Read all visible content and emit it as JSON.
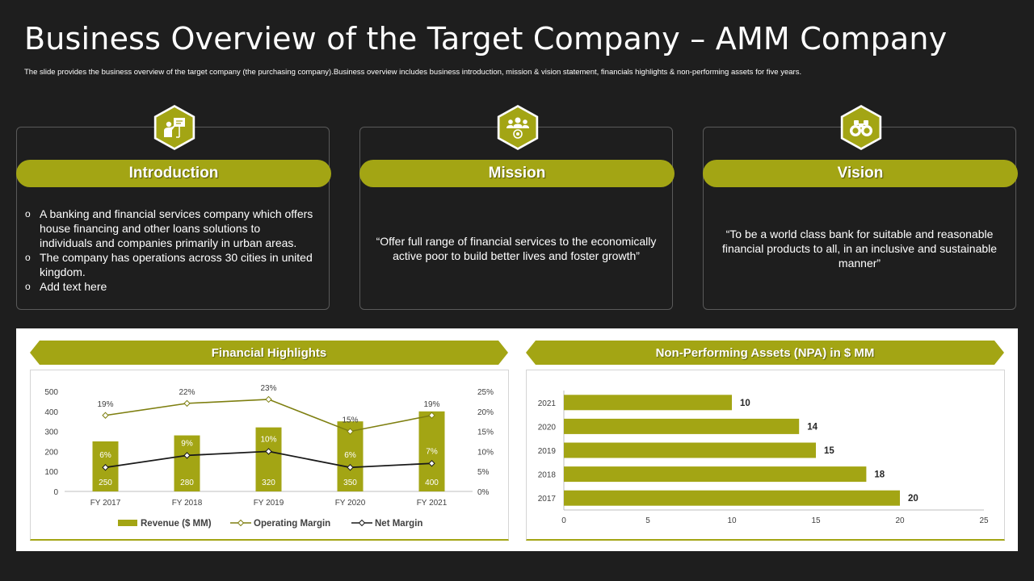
{
  "title": "Business Overview of the Target Company – AMM Company",
  "subtitle": "The slide provides the business overview of the target company (the purchasing company).Business overview includes business introduction, mission & vision statement,  financials highlights & non-performing assets for five years.",
  "colors": {
    "accent": "#a3a514",
    "background": "#1e1e1e",
    "net_margin_line": "#1a1a1a"
  },
  "cards": {
    "introduction": {
      "label": "Introduction",
      "icon": "presentation-icon",
      "bullet_marker": "o",
      "bullets": [
        "A banking and financial services company which offers house financing and other loans solutions to individuals and companies primarily in urban areas.",
        "The company has operations across 30 cities in united kingdom.",
        "Add text here"
      ]
    },
    "mission": {
      "label": "Mission",
      "icon": "team-target-icon",
      "text": "“Offer full range of financial services to the economically active poor to build better lives and foster growth”"
    },
    "vision": {
      "label": "Vision",
      "icon": "binoculars-icon",
      "text": "“To be a world class bank for suitable and reasonable financial products to all, in an inclusive and sustainable manner”"
    }
  },
  "financial_banner": "Financial Highlights",
  "npa_banner": "Non-Performing Assets  (NPA) in $ MM",
  "chart_data": [
    {
      "type": "bar",
      "title": "Financial Highlights",
      "categories": [
        "FY 2017",
        "FY 2018",
        "FY 2019",
        "FY 2020",
        "FY 2021"
      ],
      "series": [
        {
          "name": "Revenue ($ MM)",
          "kind": "bar",
          "axis": "left",
          "values": [
            250,
            280,
            320,
            350,
            400
          ],
          "labels": [
            "250",
            "280",
            "320",
            "350",
            "400"
          ]
        },
        {
          "name": "Operating Margin",
          "kind": "line",
          "axis": "right",
          "values": [
            19,
            22,
            23,
            15,
            19
          ],
          "labels": [
            "19%",
            "22%",
            "23%",
            "15%",
            "19%"
          ]
        },
        {
          "name": "Net Margin",
          "kind": "line",
          "axis": "right",
          "values": [
            6,
            9,
            10,
            6,
            7
          ],
          "labels": [
            "6%",
            "9%",
            "10%",
            "6%",
            "7%"
          ]
        }
      ],
      "ylim": [
        0,
        500
      ],
      "y_ticks": [
        "0",
        "100",
        "200",
        "300",
        "400",
        "500"
      ],
      "y2lim": [
        0,
        25
      ],
      "y2_ticks": [
        "0%",
        "5%",
        "10%",
        "15%",
        "20%",
        "25%"
      ],
      "legend": "bottom",
      "grid": false
    },
    {
      "type": "bar",
      "orientation": "horizontal",
      "title": "Non-Performing Assets  (NPA) in $ MM",
      "categories": [
        "2021",
        "2020",
        "2019",
        "2018",
        "2017"
      ],
      "values": [
        10,
        14,
        15,
        18,
        20
      ],
      "xlim": [
        0,
        25
      ],
      "x_ticks": [
        "0",
        "5",
        "10",
        "15",
        "20",
        "25"
      ],
      "grid": false
    }
  ]
}
